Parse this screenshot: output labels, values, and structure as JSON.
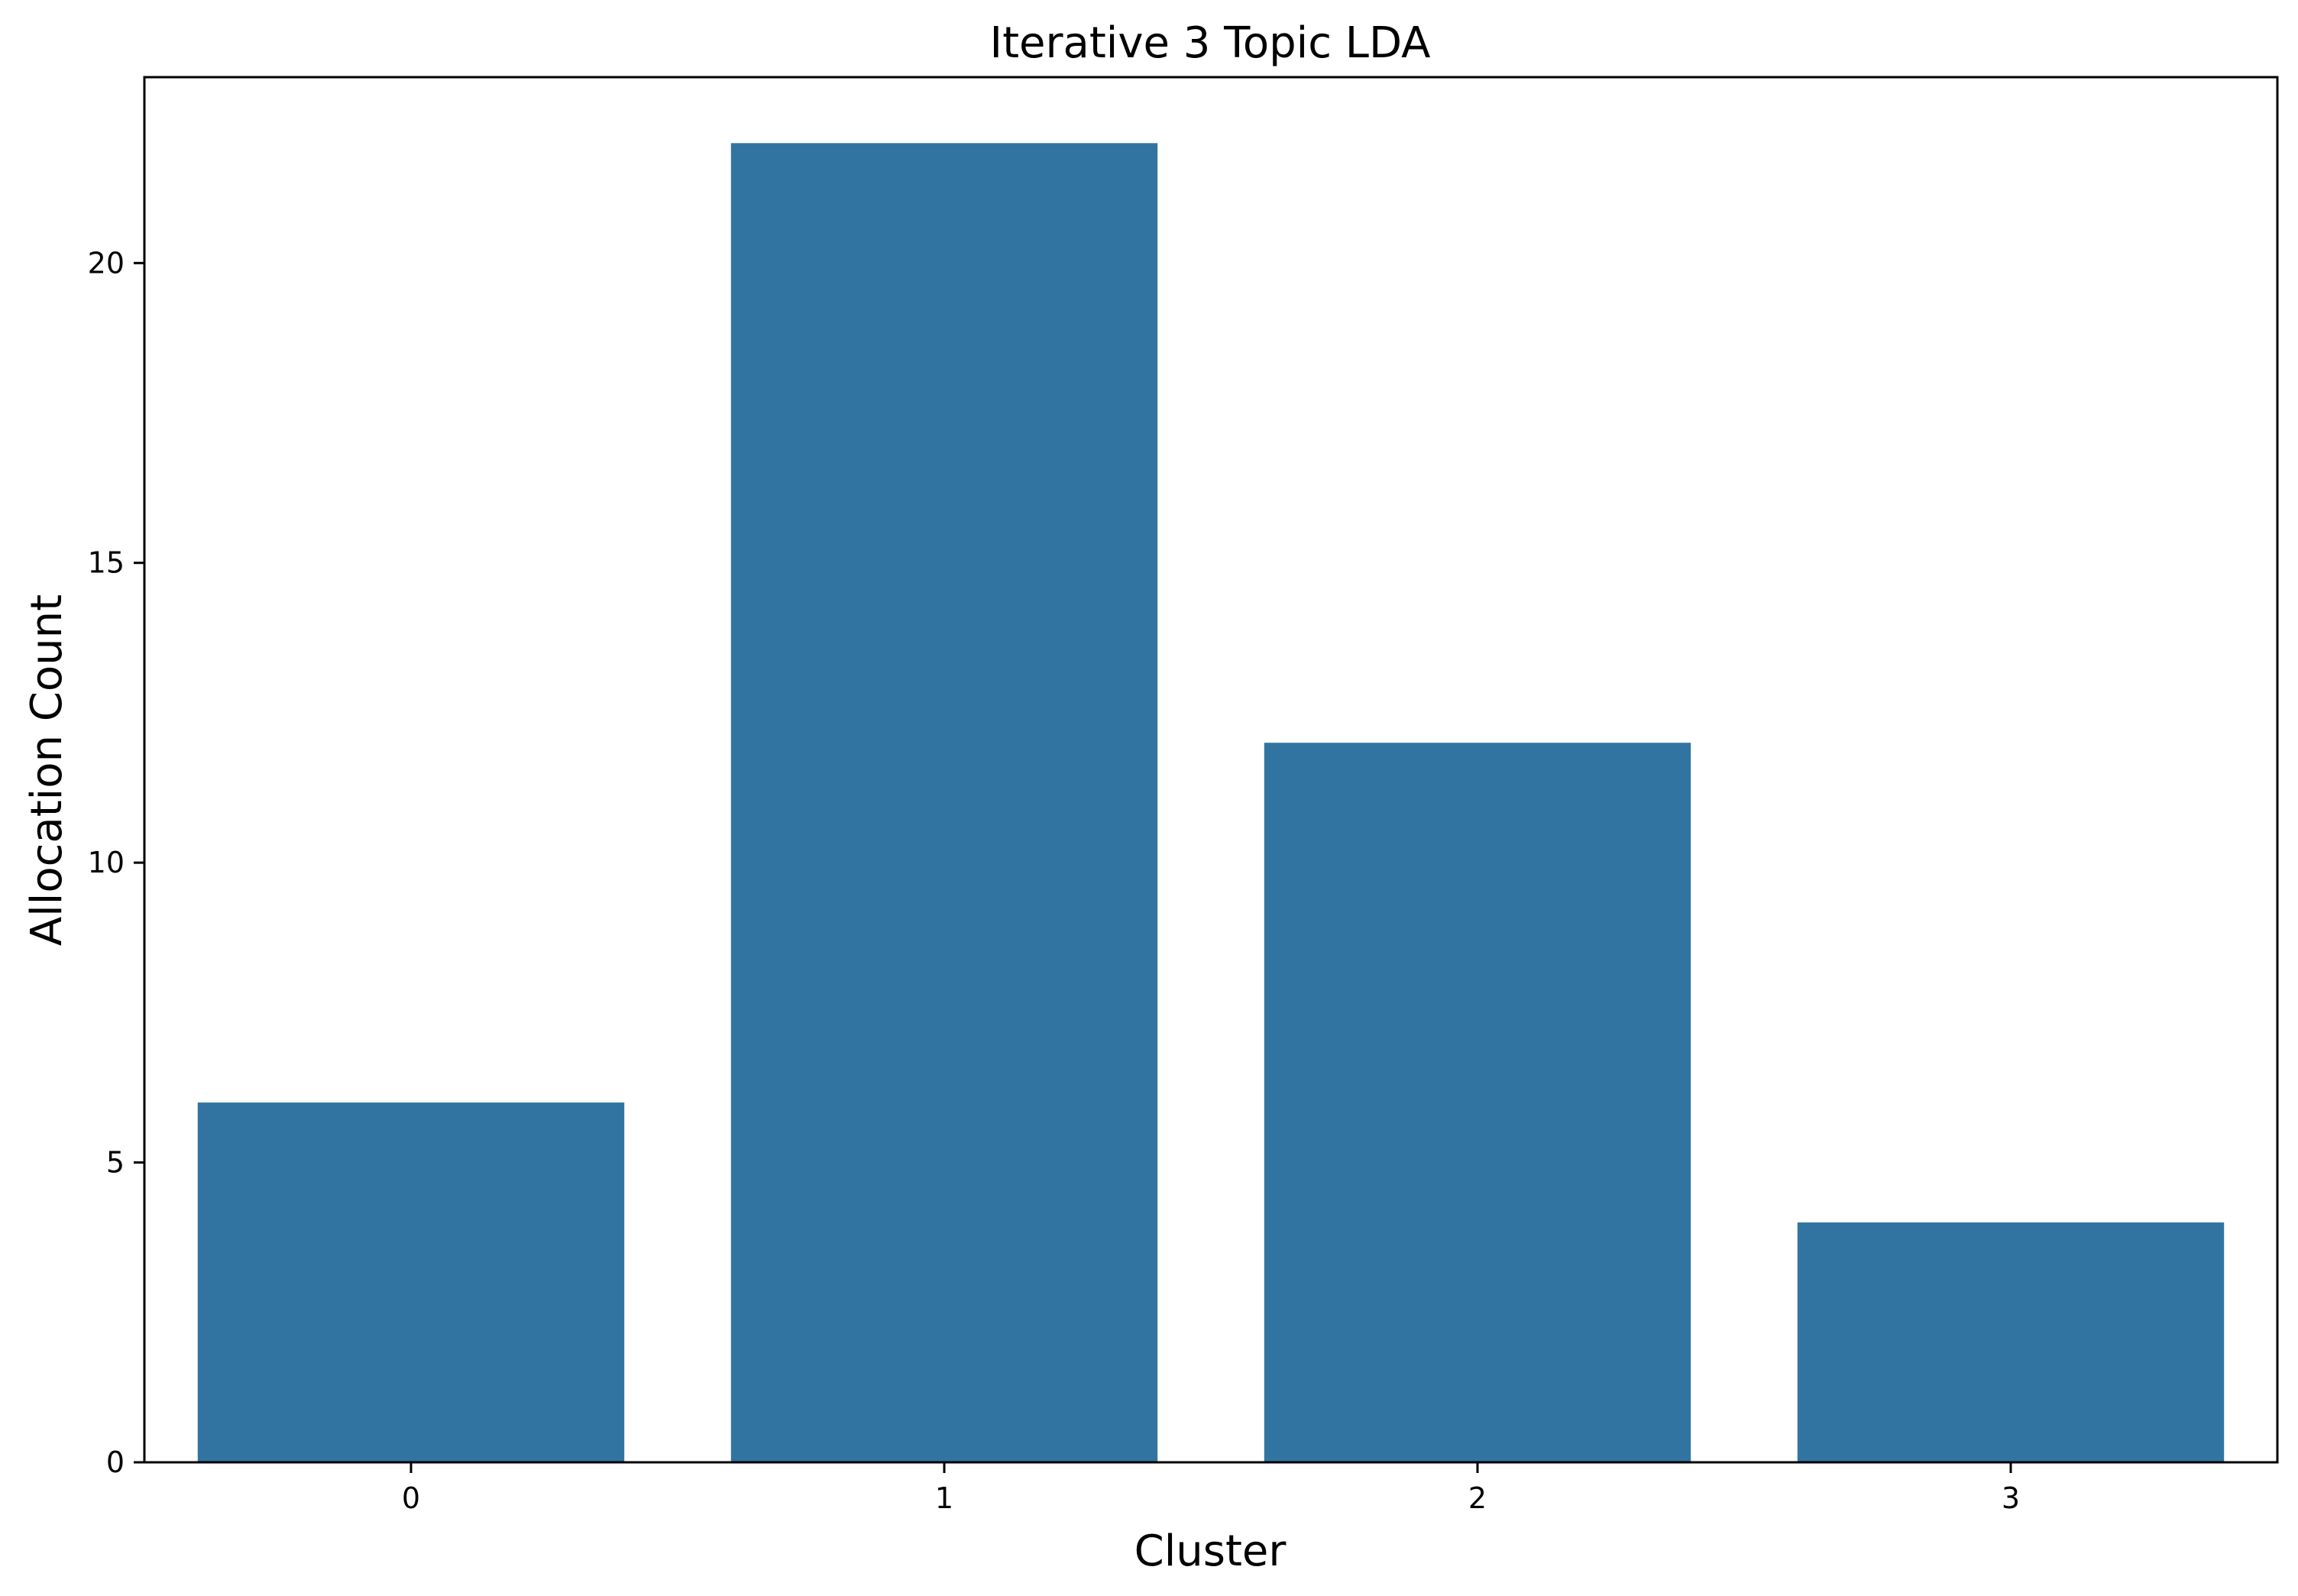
{
  "chart_data": {
    "type": "bar",
    "title": "Iterative 3 Topic LDA",
    "xlabel": "Cluster",
    "ylabel": "Allocation Count",
    "categories": [
      "0",
      "1",
      "2",
      "3"
    ],
    "values": [
      6,
      22,
      12,
      4
    ],
    "ylim": [
      0,
      23.1
    ],
    "yticks": [
      0,
      5,
      10,
      15,
      20
    ],
    "grid": false,
    "bar_color": "#3274a1"
  }
}
